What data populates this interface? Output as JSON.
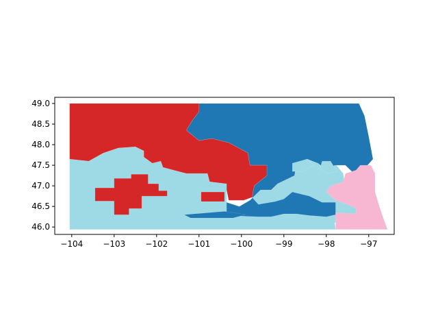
{
  "chart_data": {
    "type": "choropleth-map",
    "title": "",
    "xlabel": "",
    "ylabel": "",
    "xlim": [
      -104.4,
      -96.4
    ],
    "ylim": [
      45.82,
      49.15
    ],
    "x_ticks": [
      {
        "value": -104,
        "label": "−104"
      },
      {
        "value": -103,
        "label": "−103"
      },
      {
        "value": -102,
        "label": "−102"
      },
      {
        "value": -101,
        "label": "−101"
      },
      {
        "value": -100,
        "label": "−100"
      },
      {
        "value": -99,
        "label": "−99"
      },
      {
        "value": -98,
        "label": "−98"
      },
      {
        "value": -97,
        "label": "−97"
      }
    ],
    "y_ticks": [
      {
        "value": 46.0,
        "label": "46.0"
      },
      {
        "value": 46.5,
        "label": "46.5"
      },
      {
        "value": 47.0,
        "label": "47.0"
      },
      {
        "value": 47.5,
        "label": "47.5"
      },
      {
        "value": 48.0,
        "label": "48.0"
      },
      {
        "value": 48.5,
        "label": "48.5"
      },
      {
        "value": 49.0,
        "label": "49.0"
      }
    ],
    "grid": false,
    "legend": "none",
    "colors": {
      "red": "#d62728",
      "dark_blue": "#1f77b4",
      "light_blue": "#9edae5",
      "pink": "#f7b6d2"
    },
    "regions": [
      {
        "name": "light-blue-region",
        "color": "#9edae5",
        "lonlat": [
          [
            -104.05,
            47.65
          ],
          [
            -103.6,
            47.6
          ],
          [
            -103.25,
            47.8
          ],
          [
            -102.9,
            47.92
          ],
          [
            -102.5,
            47.95
          ],
          [
            -102.3,
            47.85
          ],
          [
            -102.3,
            47.7
          ],
          [
            -102.1,
            47.55
          ],
          [
            -101.9,
            47.6
          ],
          [
            -101.85,
            47.45
          ],
          [
            -101.6,
            47.38
          ],
          [
            -101.3,
            47.3
          ],
          [
            -100.8,
            47.3
          ],
          [
            -100.75,
            47.1
          ],
          [
            -100.35,
            47.05
          ],
          [
            -100.35,
            46.6
          ],
          [
            -100.05,
            46.5
          ],
          [
            -99.8,
            46.65
          ],
          [
            -99.55,
            46.9
          ],
          [
            -99.3,
            46.9
          ],
          [
            -99.15,
            47.05
          ],
          [
            -98.75,
            47.25
          ],
          [
            -98.7,
            47.55
          ],
          [
            -98.45,
            47.65
          ],
          [
            -98.2,
            47.55
          ],
          [
            -98.0,
            47.38
          ],
          [
            -97.8,
            47.55
          ],
          [
            -97.6,
            47.3
          ],
          [
            -97.55,
            46.9
          ],
          [
            -97.3,
            46.8
          ],
          [
            -97.3,
            46.65
          ],
          [
            -97.0,
            46.55
          ],
          [
            -96.9,
            46.35
          ],
          [
            -97.6,
            46.3
          ],
          [
            -97.8,
            46.1
          ],
          [
            -97.78,
            45.94
          ],
          [
            -104.05,
            45.94
          ]
        ]
      },
      {
        "name": "dark-blue-region",
        "color": "#1f77b4",
        "lonlat": [
          [
            -101.0,
            49.0
          ],
          [
            -97.23,
            49.0
          ],
          [
            -97.1,
            48.7
          ],
          [
            -97.0,
            48.2
          ],
          [
            -96.9,
            47.65
          ],
          [
            -97.2,
            47.3
          ],
          [
            -97.35,
            47.3
          ],
          [
            -97.55,
            47.5
          ],
          [
            -97.8,
            47.5
          ],
          [
            -98.0,
            47.4
          ],
          [
            -98.2,
            47.55
          ],
          [
            -98.45,
            47.65
          ],
          [
            -98.7,
            47.55
          ],
          [
            -98.75,
            47.25
          ],
          [
            -99.15,
            47.05
          ],
          [
            -99.3,
            46.9
          ],
          [
            -99.55,
            46.9
          ],
          [
            -99.8,
            46.65
          ],
          [
            -100.05,
            46.5
          ],
          [
            -100.35,
            46.6
          ],
          [
            -100.35,
            46.32
          ],
          [
            -100.1,
            46.27
          ],
          [
            -99.6,
            46.25
          ],
          [
            -99.3,
            46.25
          ],
          [
            -99.0,
            46.32
          ],
          [
            -98.7,
            46.32
          ],
          [
            -98.4,
            46.28
          ],
          [
            -98.0,
            46.25
          ],
          [
            -97.78,
            46.3
          ],
          [
            -97.78,
            46.6
          ],
          [
            -98.1,
            46.6
          ],
          [
            -98.4,
            46.75
          ],
          [
            -98.8,
            46.85
          ],
          [
            -99.0,
            46.68
          ],
          [
            -99.2,
            46.62
          ],
          [
            -99.6,
            46.55
          ],
          [
            -99.75,
            46.72
          ],
          [
            -99.7,
            47.0
          ],
          [
            -99.4,
            47.25
          ],
          [
            -99.4,
            47.5
          ],
          [
            -99.8,
            47.5
          ],
          [
            -99.85,
            47.8
          ],
          [
            -100.3,
            48.05
          ],
          [
            -100.7,
            48.15
          ],
          [
            -101.0,
            48.1
          ],
          [
            -101.3,
            48.35
          ],
          [
            -101.15,
            48.6
          ],
          [
            -101.0,
            48.8
          ]
        ]
      },
      {
        "name": "pink-region",
        "color": "#f7b6d2",
        "lonlat": [
          [
            -97.78,
            45.94
          ],
          [
            -96.56,
            45.94
          ],
          [
            -96.65,
            46.2
          ],
          [
            -96.75,
            46.5
          ],
          [
            -96.85,
            46.85
          ],
          [
            -96.85,
            47.3
          ],
          [
            -96.95,
            47.5
          ],
          [
            -97.2,
            47.5
          ],
          [
            -97.3,
            47.38
          ],
          [
            -97.55,
            47.3
          ],
          [
            -97.6,
            47.1
          ],
          [
            -97.9,
            47.0
          ],
          [
            -98.0,
            46.85
          ],
          [
            -97.78,
            46.65
          ],
          [
            -97.5,
            46.55
          ],
          [
            -97.3,
            46.45
          ],
          [
            -97.3,
            46.32
          ],
          [
            -97.78,
            46.35
          ]
        ]
      },
      {
        "name": "red-region",
        "color": "#d62728",
        "lonlat": [
          [
            -104.05,
            49.0
          ],
          [
            -101.0,
            49.0
          ],
          [
            -101.0,
            48.8
          ],
          [
            -101.15,
            48.6
          ],
          [
            -101.3,
            48.35
          ],
          [
            -101.0,
            48.1
          ],
          [
            -100.7,
            48.15
          ],
          [
            -100.3,
            48.05
          ],
          [
            -99.85,
            47.8
          ],
          [
            -99.8,
            47.5
          ],
          [
            -99.4,
            47.5
          ],
          [
            -99.4,
            47.25
          ],
          [
            -99.7,
            47.0
          ],
          [
            -99.75,
            46.72
          ],
          [
            -99.95,
            46.65
          ],
          [
            -100.3,
            46.65
          ],
          [
            -100.35,
            46.9
          ],
          [
            -100.35,
            47.05
          ],
          [
            -100.75,
            47.1
          ],
          [
            -100.8,
            47.3
          ],
          [
            -101.3,
            47.3
          ],
          [
            -101.6,
            47.38
          ],
          [
            -101.85,
            47.45
          ],
          [
            -101.9,
            47.6
          ],
          [
            -102.1,
            47.55
          ],
          [
            -102.3,
            47.7
          ],
          [
            -102.3,
            47.85
          ],
          [
            -102.5,
            47.95
          ],
          [
            -102.9,
            47.92
          ],
          [
            -103.25,
            47.8
          ],
          [
            -103.6,
            47.6
          ],
          [
            -104.05,
            47.65
          ]
        ]
      },
      {
        "name": "red-southwest-block",
        "color": "#d62728",
        "lonlat": [
          [
            -103.45,
            46.95
          ],
          [
            -103.0,
            46.95
          ],
          [
            -103.0,
            47.18
          ],
          [
            -102.6,
            47.18
          ],
          [
            -102.6,
            47.28
          ],
          [
            -102.2,
            47.28
          ],
          [
            -102.2,
            47.05
          ],
          [
            -101.95,
            47.05
          ],
          [
            -101.95,
            46.88
          ],
          [
            -101.75,
            46.88
          ],
          [
            -101.75,
            46.75
          ],
          [
            -102.35,
            46.75
          ],
          [
            -102.35,
            46.45
          ],
          [
            -102.65,
            46.45
          ],
          [
            -102.65,
            46.3
          ],
          [
            -103.0,
            46.3
          ],
          [
            -103.0,
            46.63
          ],
          [
            -103.45,
            46.63
          ]
        ]
      },
      {
        "name": "red-center-block",
        "color": "#d62728",
        "lonlat": [
          [
            -100.95,
            46.85
          ],
          [
            -100.4,
            46.85
          ],
          [
            -100.4,
            46.62
          ],
          [
            -100.95,
            46.62
          ]
        ]
      },
      {
        "name": "dark-blue-strip",
        "color": "#1f77b4",
        "lonlat": [
          [
            -101.35,
            46.3
          ],
          [
            -100.4,
            46.38
          ],
          [
            -100.0,
            46.32
          ],
          [
            -99.9,
            46.3
          ],
          [
            -100.2,
            46.22
          ],
          [
            -101.2,
            46.22
          ]
        ]
      },
      {
        "name": "light-blue-inlet-east",
        "color": "#9edae5",
        "lonlat": [
          [
            -98.1,
            47.6
          ],
          [
            -97.9,
            47.6
          ],
          [
            -97.75,
            47.35
          ],
          [
            -97.95,
            47.3
          ],
          [
            -98.15,
            47.4
          ]
        ]
      },
      {
        "name": "light-blue-inlet-northwest",
        "color": "#9edae5",
        "lonlat": [
          [
            -98.8,
            47.55
          ],
          [
            -98.45,
            47.65
          ],
          [
            -98.3,
            47.5
          ],
          [
            -98.55,
            47.35
          ],
          [
            -98.8,
            47.35
          ]
        ]
      }
    ]
  }
}
